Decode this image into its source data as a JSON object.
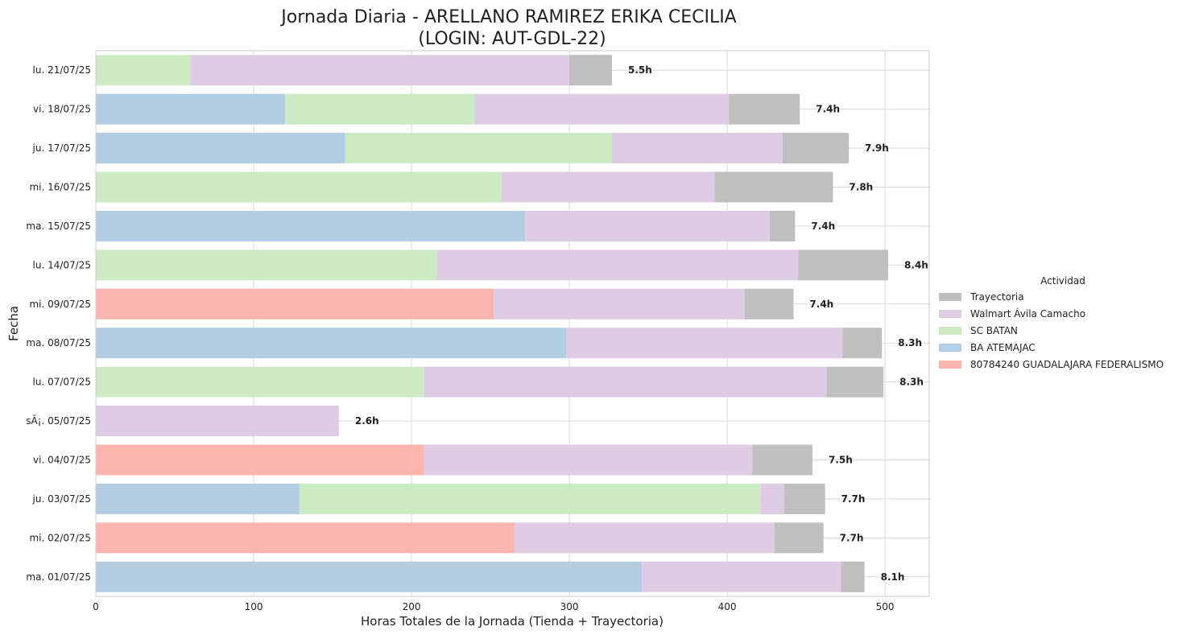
{
  "chart_data": {
    "type": "bar",
    "orientation": "horizontal",
    "stacked": true,
    "title": "Jornada Diaria - ARELLANO RAMIREZ ERIKA CECILIA\n(LOGIN: AUT-GDL-22)",
    "xlabel": "Horas Totales de la Jornada (Tienda + Trayectoria)",
    "ylabel": "Fecha",
    "xlim": [
      0,
      528
    ],
    "xticks": [
      0,
      100,
      200,
      300,
      400,
      500
    ],
    "grid": true,
    "legend": {
      "title": "Actividad",
      "placement": "right"
    },
    "categories": [
      "lu. 21/07/25",
      "vi. 18/07/25",
      "ju. 17/07/25",
      "mi. 16/07/25",
      "ma. 15/07/25",
      "lu. 14/07/25",
      "mi. 09/07/25",
      "ma. 08/07/25",
      "lu. 07/07/25",
      "sÃ¡. 05/07/25",
      "vi. 04/07/25",
      "ju. 03/07/25",
      "mi. 02/07/25",
      "ma. 01/07/25"
    ],
    "stack_order": [
      "80784240 GUADALAJARA FEDERALISMO",
      "BA ATEMAJAC",
      "SC BATAN",
      "Walmart Ávila Camacho",
      "Trayectoria"
    ],
    "series": [
      {
        "name": "Trayectoria",
        "color": "#bfbfbf",
        "values": [
          27,
          45,
          42,
          75,
          16,
          57,
          31,
          25,
          36,
          0,
          38,
          26,
          31,
          15
        ]
      },
      {
        "name": "Walmart Ávila Camacho",
        "color": "#decbe4",
        "values": [
          240,
          161,
          108,
          135,
          155,
          229,
          159,
          175,
          255,
          154,
          208,
          15,
          165,
          126
        ]
      },
      {
        "name": "SC BATAN",
        "color": "#ccebc5",
        "values": [
          60,
          120,
          169,
          257,
          0,
          216,
          0,
          0,
          208,
          0,
          0,
          292,
          0,
          0
        ]
      },
      {
        "name": "BA ATEMAJAC",
        "color": "#b3cde3",
        "values": [
          0,
          120,
          158,
          0,
          272,
          0,
          0,
          298,
          0,
          0,
          0,
          129,
          0,
          346
        ]
      },
      {
        "name": "80784240 GUADALAJARA FEDERALISMO",
        "color": "#fbb4ae",
        "values": [
          0,
          0,
          0,
          0,
          0,
          0,
          252,
          0,
          0,
          0,
          208,
          0,
          265,
          0
        ]
      }
    ],
    "data_labels": [
      "5.5h",
      "7.4h",
      "7.9h",
      "7.8h",
      "7.4h",
      "8.4h",
      "7.4h",
      "8.3h",
      "8.3h",
      "2.6h",
      "7.5h",
      "7.7h",
      "7.7h",
      "8.1h"
    ]
  }
}
